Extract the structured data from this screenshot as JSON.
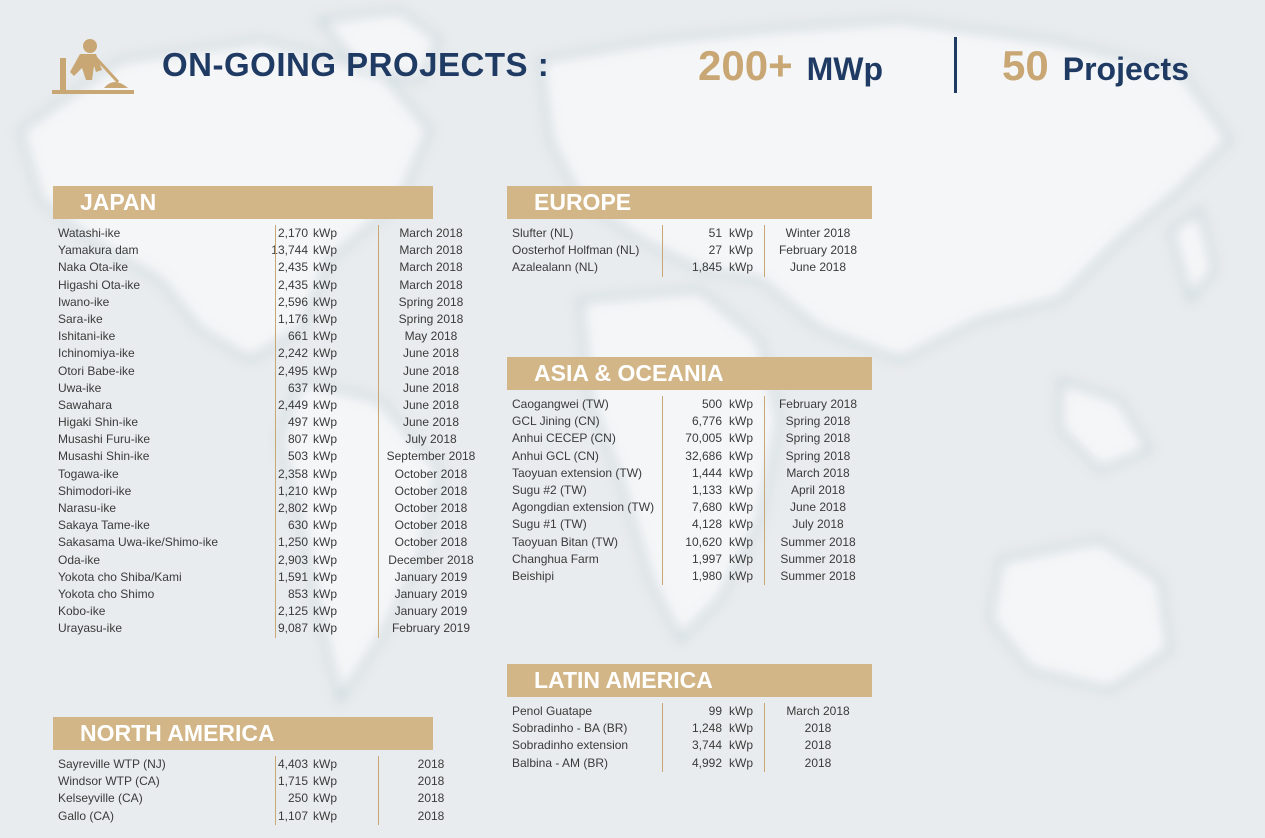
{
  "header": {
    "title": "ON-GOING PROJECTS :",
    "capacity_value": "200+",
    "capacity_unit": "MWp",
    "projects_value": "50",
    "projects_unit": "Projects",
    "icon": "construction-worker-icon"
  },
  "colors": {
    "accent": "#c9a774",
    "header_band": "#d2b687",
    "title": "#1f3a63"
  },
  "sections": {
    "japan": {
      "title": "JAPAN",
      "rows": [
        {
          "name": "Watashi-ike",
          "value": "2,170",
          "unit": "kWp",
          "date": "March 2018"
        },
        {
          "name": "Yamakura dam",
          "value": "13,744",
          "unit": "kWp",
          "date": "March 2018"
        },
        {
          "name": "Naka Ota-ike",
          "value": "2,435",
          "unit": "kWp",
          "date": "March 2018"
        },
        {
          "name": "Higashi Ota-ike",
          "value": "2,435",
          "unit": "kWp",
          "date": "March 2018"
        },
        {
          "name": "Iwano-ike",
          "value": "2,596",
          "unit": "kWp",
          "date": "Spring 2018"
        },
        {
          "name": "Sara-ike",
          "value": "1,176",
          "unit": "kWp",
          "date": "Spring 2018"
        },
        {
          "name": "Ishitani-ike",
          "value": "661",
          "unit": "kWp",
          "date": "May 2018"
        },
        {
          "name": "Ichinomiya-ike",
          "value": "2,242",
          "unit": "kWp",
          "date": "June 2018"
        },
        {
          "name": "Otori Babe-ike",
          "value": "2,495",
          "unit": "kWp",
          "date": "June 2018"
        },
        {
          "name": "Uwa-ike",
          "value": "637",
          "unit": "kWp",
          "date": "June 2018"
        },
        {
          "name": "Sawahara",
          "value": "2,449",
          "unit": "kWp",
          "date": "June 2018"
        },
        {
          "name": "Higaki Shin-ike",
          "value": "497",
          "unit": "kWp",
          "date": "June 2018"
        },
        {
          "name": "Musashi Furu-ike",
          "value": "807",
          "unit": "kWp",
          "date": "July 2018"
        },
        {
          "name": "Musashi Shin-ike",
          "value": "503",
          "unit": "kWp",
          "date": "September 2018"
        },
        {
          "name": "Togawa-ike",
          "value": "2,358",
          "unit": "kWp",
          "date": "October 2018"
        },
        {
          "name": "Shimodori-ike",
          "value": "1,210",
          "unit": "kWp",
          "date": "October 2018"
        },
        {
          "name": "Narasu-ike",
          "value": "2,802",
          "unit": "kWp",
          "date": "October 2018"
        },
        {
          "name": "Sakaya Tame-ike",
          "value": "630",
          "unit": "kWp",
          "date": "October 2018"
        },
        {
          "name": "Sakasama Uwa-ike/Shimo-ike",
          "value": "1,250",
          "unit": "kWp",
          "date": "October 2018"
        },
        {
          "name": "Oda-ike",
          "value": "2,903",
          "unit": "kWp",
          "date": "December 2018"
        },
        {
          "name": "Yokota cho Shiba/Kami",
          "value": "1,591",
          "unit": "kWp",
          "date": "January 2019"
        },
        {
          "name": "Yokota cho Shimo",
          "value": "853",
          "unit": "kWp",
          "date": "January 2019"
        },
        {
          "name": "Kobo-ike",
          "value": "2,125",
          "unit": "kWp",
          "date": "January 2019"
        },
        {
          "name": "Urayasu-ike",
          "value": "9,087",
          "unit": "kWp",
          "date": "February 2019"
        }
      ]
    },
    "north_america": {
      "title": "NORTH AMERICA",
      "rows": [
        {
          "name": "Sayreville WTP (NJ)",
          "value": "4,403",
          "unit": "kWp",
          "date": "2018"
        },
        {
          "name": "Windsor WTP (CA)",
          "value": "1,715",
          "unit": "kWp",
          "date": "2018"
        },
        {
          "name": "Kelseyville (CA)",
          "value": "250",
          "unit": "kWp",
          "date": "2018"
        },
        {
          "name": "Gallo (CA)",
          "value": "1,107",
          "unit": "kWp",
          "date": "2018"
        }
      ]
    },
    "europe": {
      "title": "EUROPE",
      "rows": [
        {
          "name": "Slufter (NL)",
          "value": "51",
          "unit": "kWp",
          "date": "Winter 2018"
        },
        {
          "name": "Oosterhof Holfman (NL)",
          "value": "27",
          "unit": "kWp",
          "date": "February 2018"
        },
        {
          "name": "Azalealann (NL)",
          "value": "1,845",
          "unit": "kWp",
          "date": "June 2018"
        }
      ]
    },
    "asia_oceania": {
      "title": "ASIA & OCEANIA",
      "rows": [
        {
          "name": "Caogangwei (TW)",
          "value": "500",
          "unit": "kWp",
          "date": "February 2018"
        },
        {
          "name": "GCL Jining (CN)",
          "value": "6,776",
          "unit": "kWp",
          "date": "Spring 2018"
        },
        {
          "name": "Anhui CECEP (CN)",
          "value": "70,005",
          "unit": "kWp",
          "date": "Spring 2018"
        },
        {
          "name": "Anhui GCL (CN)",
          "value": "32,686",
          "unit": "kWp",
          "date": "Spring 2018"
        },
        {
          "name": "Taoyuan extension (TW)",
          "value": "1,444",
          "unit": "kWp",
          "date": "March 2018"
        },
        {
          "name": "Sugu #2 (TW)",
          "value": "1,133",
          "unit": "kWp",
          "date": "April 2018"
        },
        {
          "name": "Agongdian extension (TW)",
          "value": "7,680",
          "unit": "kWp",
          "date": "June 2018"
        },
        {
          "name": "Sugu #1 (TW)",
          "value": "4,128",
          "unit": "kWp",
          "date": "July 2018"
        },
        {
          "name": "Taoyuan Bitan (TW)",
          "value": "10,620",
          "unit": "kWp",
          "date": "Summer 2018"
        },
        {
          "name": "Changhua Farm",
          "value": "1,997",
          "unit": "kWp",
          "date": "Summer 2018"
        },
        {
          "name": "Beishipi",
          "value": "1,980",
          "unit": "kWp",
          "date": "Summer 2018"
        }
      ]
    },
    "latin_america": {
      "title": "LATIN AMERICA",
      "rows": [
        {
          "name": "Penol Guatape",
          "value": "99",
          "unit": "kWp",
          "date": "March 2018"
        },
        {
          "name": "Sobradinho - BA (BR)",
          "value": "1,248",
          "unit": "kWp",
          "date": "2018"
        },
        {
          "name": "Sobradinho extension",
          "value": "3,744",
          "unit": "kWp",
          "date": "2018"
        },
        {
          "name": "Balbina - AM (BR)",
          "value": "4,992",
          "unit": "kWp",
          "date": "2018"
        }
      ]
    }
  }
}
